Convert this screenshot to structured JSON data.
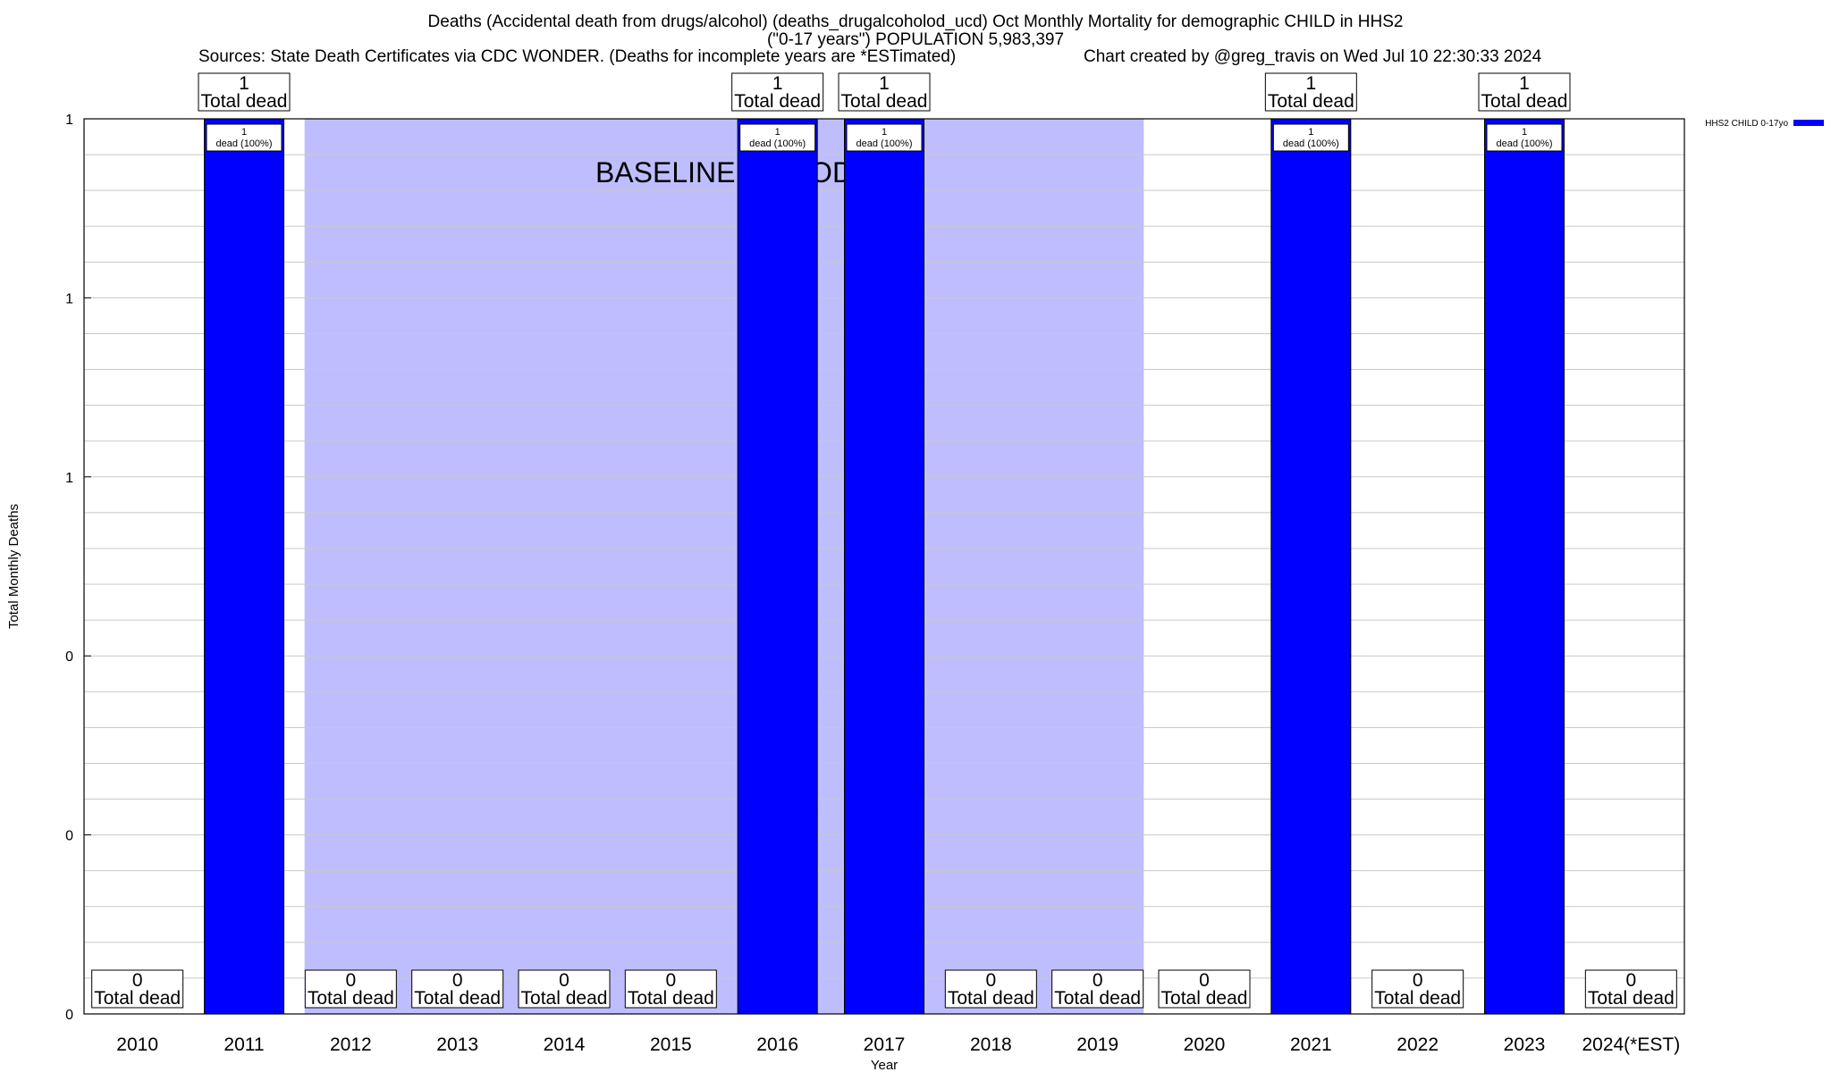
{
  "header": {
    "title_line1": "Deaths (Accidental death from drugs/alcohol) (deaths_drugalcoholod_ucd) Oct Monthly Mortality for demographic CHILD in HHS2",
    "title_line2": "(\"0-17 years\") POPULATION 5,983,397",
    "sources": "Sources: State Death Certificates via CDC WONDER. (Deaths for incomplete years are *ESTimated)",
    "credit": "Chart created by @greg_travis on Wed Jul 10 22:30:33 2024"
  },
  "chart_data": {
    "type": "bar",
    "xlabel": "Year",
    "ylabel": "Total Monthly Deaths",
    "ylim": [
      0,
      1
    ],
    "y_tick_labels": [
      "0",
      "0",
      "0",
      "1",
      "1",
      "1"
    ],
    "grid": true,
    "categories": [
      "2010",
      "2011",
      "2012",
      "2013",
      "2014",
      "2015",
      "2016",
      "2017",
      "2018",
      "2019",
      "2020",
      "2021",
      "2022",
      "2023",
      "2024(*EST)"
    ],
    "series": [
      {
        "name": "HHS2 CHILD 0-17yo",
        "color": "#0000ff",
        "values": [
          0,
          1,
          0,
          0,
          0,
          0,
          1,
          1,
          0,
          0,
          0,
          1,
          0,
          1,
          0
        ]
      }
    ],
    "total_labels": [
      "0",
      "1",
      "0",
      "0",
      "0",
      "0",
      "1",
      "1",
      "0",
      "0",
      "0",
      "1",
      "0",
      "1",
      "0"
    ],
    "total_label_suffix": "Total dead",
    "inner_label_top": "1",
    "inner_label_bottom": "dead (100%)",
    "baseline_period": {
      "label": "BASELINE PERIOD",
      "start_category": "2012",
      "end_category": "2019",
      "color": "#bebeff"
    },
    "legend_position": "top-right"
  }
}
